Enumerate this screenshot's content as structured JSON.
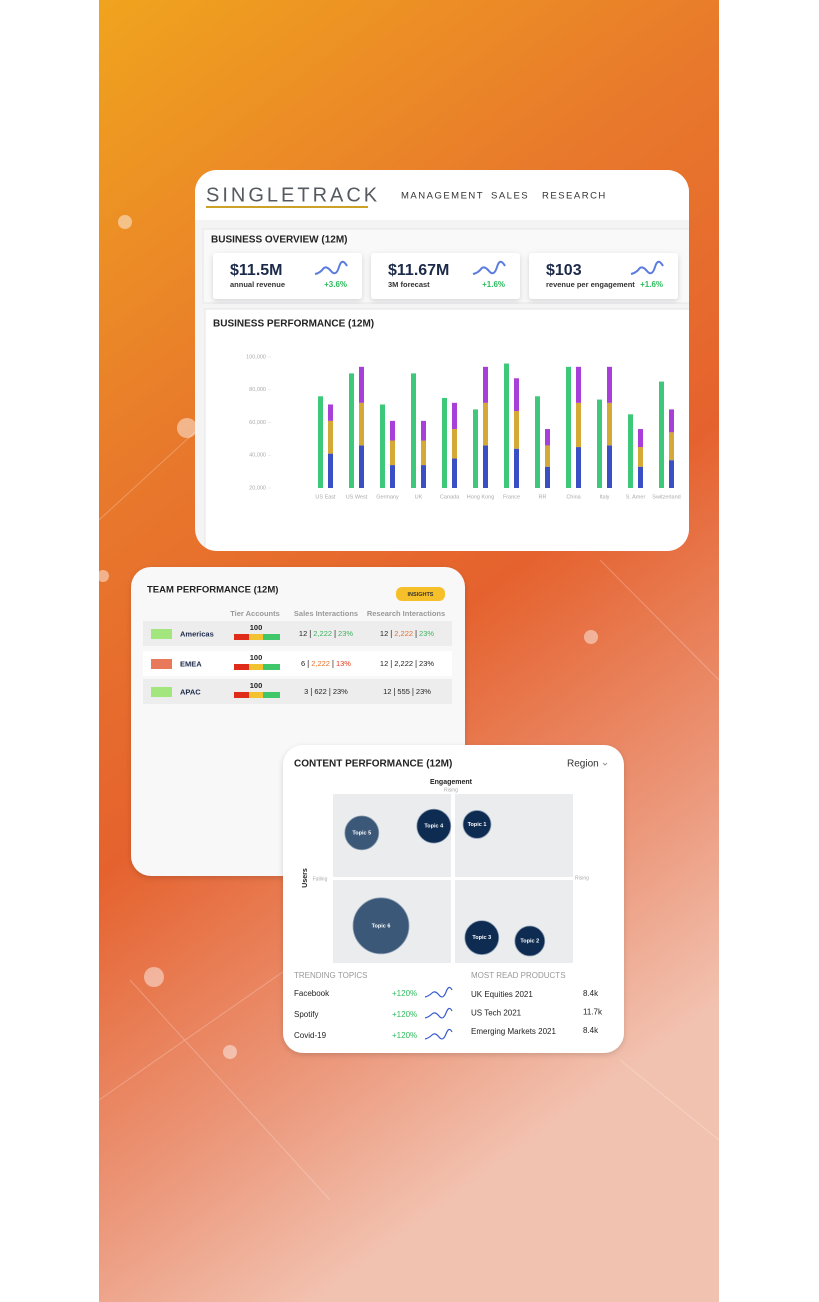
{
  "header": {
    "logo": "SINGLETRACK",
    "nav": [
      "MANAGEMENT",
      "SALES",
      "RESEARCH"
    ]
  },
  "business_overview": {
    "title": "BUSINESS OVERVIEW (12M)",
    "kpis": [
      {
        "value": "$11.5M",
        "label": "annual revenue",
        "change": "+3.6%"
      },
      {
        "value": "$11.67M",
        "label": "3M forecast",
        "change": "+1.6%"
      },
      {
        "value": "$103",
        "label": "revenue per engagement",
        "change": "+1.6%"
      }
    ]
  },
  "chart_data": [
    {
      "type": "bar",
      "title": "BUSINESS PERFORMANCE (12M)",
      "categories": [
        "US East",
        "US West",
        "Germany",
        "UK",
        "Canada",
        "Hong Kong",
        "France",
        "RR",
        "China",
        "Italy",
        "S. Amer",
        "Switzerland"
      ],
      "series": [
        {
          "color": "#3ec97a",
          "stack": 0,
          "values": [
            76000,
            90000,
            71000,
            90000,
            75000,
            68000,
            96000,
            76000,
            94000,
            74000,
            65000,
            85000
          ]
        },
        {
          "color": "#3b4fc4",
          "stack": 1,
          "values": [
            41000,
            46000,
            34000,
            34000,
            38000,
            46000,
            44000,
            33000,
            45000,
            46000,
            33000,
            37000
          ]
        },
        {
          "color": "#d4a935",
          "stack": 1,
          "values": [
            20000,
            26000,
            15000,
            15000,
            18000,
            26000,
            23000,
            13000,
            27000,
            26000,
            12000,
            17000
          ]
        },
        {
          "color": "#a73fd8",
          "stack": 1,
          "values": [
            10000,
            22000,
            12000,
            12000,
            16000,
            22000,
            20000,
            10000,
            22000,
            22000,
            11000,
            14000
          ]
        }
      ],
      "ylim": [
        20000,
        100000
      ],
      "yticks": [
        {
          "value": 20000,
          "label": "20,000"
        },
        {
          "value": 40000,
          "label": "40,000"
        },
        {
          "value": 60000,
          "label": "60,000"
        },
        {
          "value": 80000,
          "label": "80,000"
        },
        {
          "value": 100000,
          "label": "100,000"
        }
      ]
    },
    {
      "type": "bubble",
      "x_label": "Users",
      "y_label": "Engagement",
      "x_low_label": "Falling",
      "x_high_label": "Rising",
      "y_high_label": "Rising",
      "xlim": [
        0,
        100
      ],
      "ylim": [
        0,
        100
      ],
      "points": [
        {
          "label": "Topic 1",
          "x": 60,
          "y": 82,
          "size": 14,
          "color": "#0e2c52"
        },
        {
          "label": "Topic 2",
          "x": 82,
          "y": 13,
          "size": 15,
          "color": "#0e2c52"
        },
        {
          "label": "Topic 3",
          "x": 62,
          "y": 15,
          "size": 17,
          "color": "#0e2c52"
        },
        {
          "label": "Topic 4",
          "x": 42,
          "y": 81,
          "size": 17,
          "color": "#0e2c52"
        },
        {
          "label": "Topic 5",
          "x": 12,
          "y": 77,
          "size": 17,
          "color": "#3b5878"
        },
        {
          "label": "Topic 6",
          "x": 20,
          "y": 22,
          "size": 28,
          "color": "#3b5878"
        }
      ]
    }
  ],
  "team_performance": {
    "title": "TEAM PERFORMANCE (12M)",
    "button": "INSIGHTS",
    "columns": [
      "Tier Accounts",
      "Sales Interactions",
      "Research Interactions"
    ],
    "rows": [
      {
        "region": "Americas",
        "color": "#a3e67d",
        "tier": 100,
        "sales": {
          "parts": [
            "12",
            "2,222",
            "23%"
          ],
          "colors": [
            "#222",
            "#3fb35f",
            "#3fb35f"
          ]
        },
        "research": {
          "parts": [
            "12",
            "2,222",
            "23%"
          ],
          "colors": [
            "#222",
            "#e8722a",
            "#3fb35f"
          ]
        }
      },
      {
        "region": "EMEA",
        "color": "#e8795a",
        "tier": 100,
        "sales": {
          "parts": [
            "6",
            "2,222",
            "13%"
          ],
          "colors": [
            "#222",
            "#e8722a",
            "#e03a1a"
          ]
        },
        "research": {
          "parts": [
            "12",
            "2,222",
            "23%"
          ],
          "colors": [
            "#222",
            "#222",
            "#222"
          ]
        }
      },
      {
        "region": "APAC",
        "color": "#a3e67d",
        "tier": 100,
        "sales": {
          "parts": [
            "3",
            "622",
            "23%"
          ],
          "colors": [
            "#222",
            "#222",
            "#222"
          ]
        },
        "research": {
          "parts": [
            "12",
            "555",
            "23%"
          ],
          "colors": [
            "#222",
            "#222",
            "#222"
          ]
        }
      }
    ]
  },
  "content_performance": {
    "title": "CONTENT PERFORMANCE (12M)",
    "filter": "Region",
    "trending": {
      "title": "TRENDING TOPICS",
      "items": [
        {
          "name": "Facebook",
          "change": "+120%"
        },
        {
          "name": "Spotify",
          "change": "+120%"
        },
        {
          "name": "Covid-19",
          "change": "+120%"
        }
      ]
    },
    "most_read": {
      "title": "MOST READ PRODUCTS",
      "items": [
        {
          "name": "UK Equities 2021",
          "value": "8.4k"
        },
        {
          "name": "US Tech 2021",
          "value": "11.7k"
        },
        {
          "name": "Emerging Markets 2021",
          "value": "8.4k"
        }
      ]
    }
  }
}
